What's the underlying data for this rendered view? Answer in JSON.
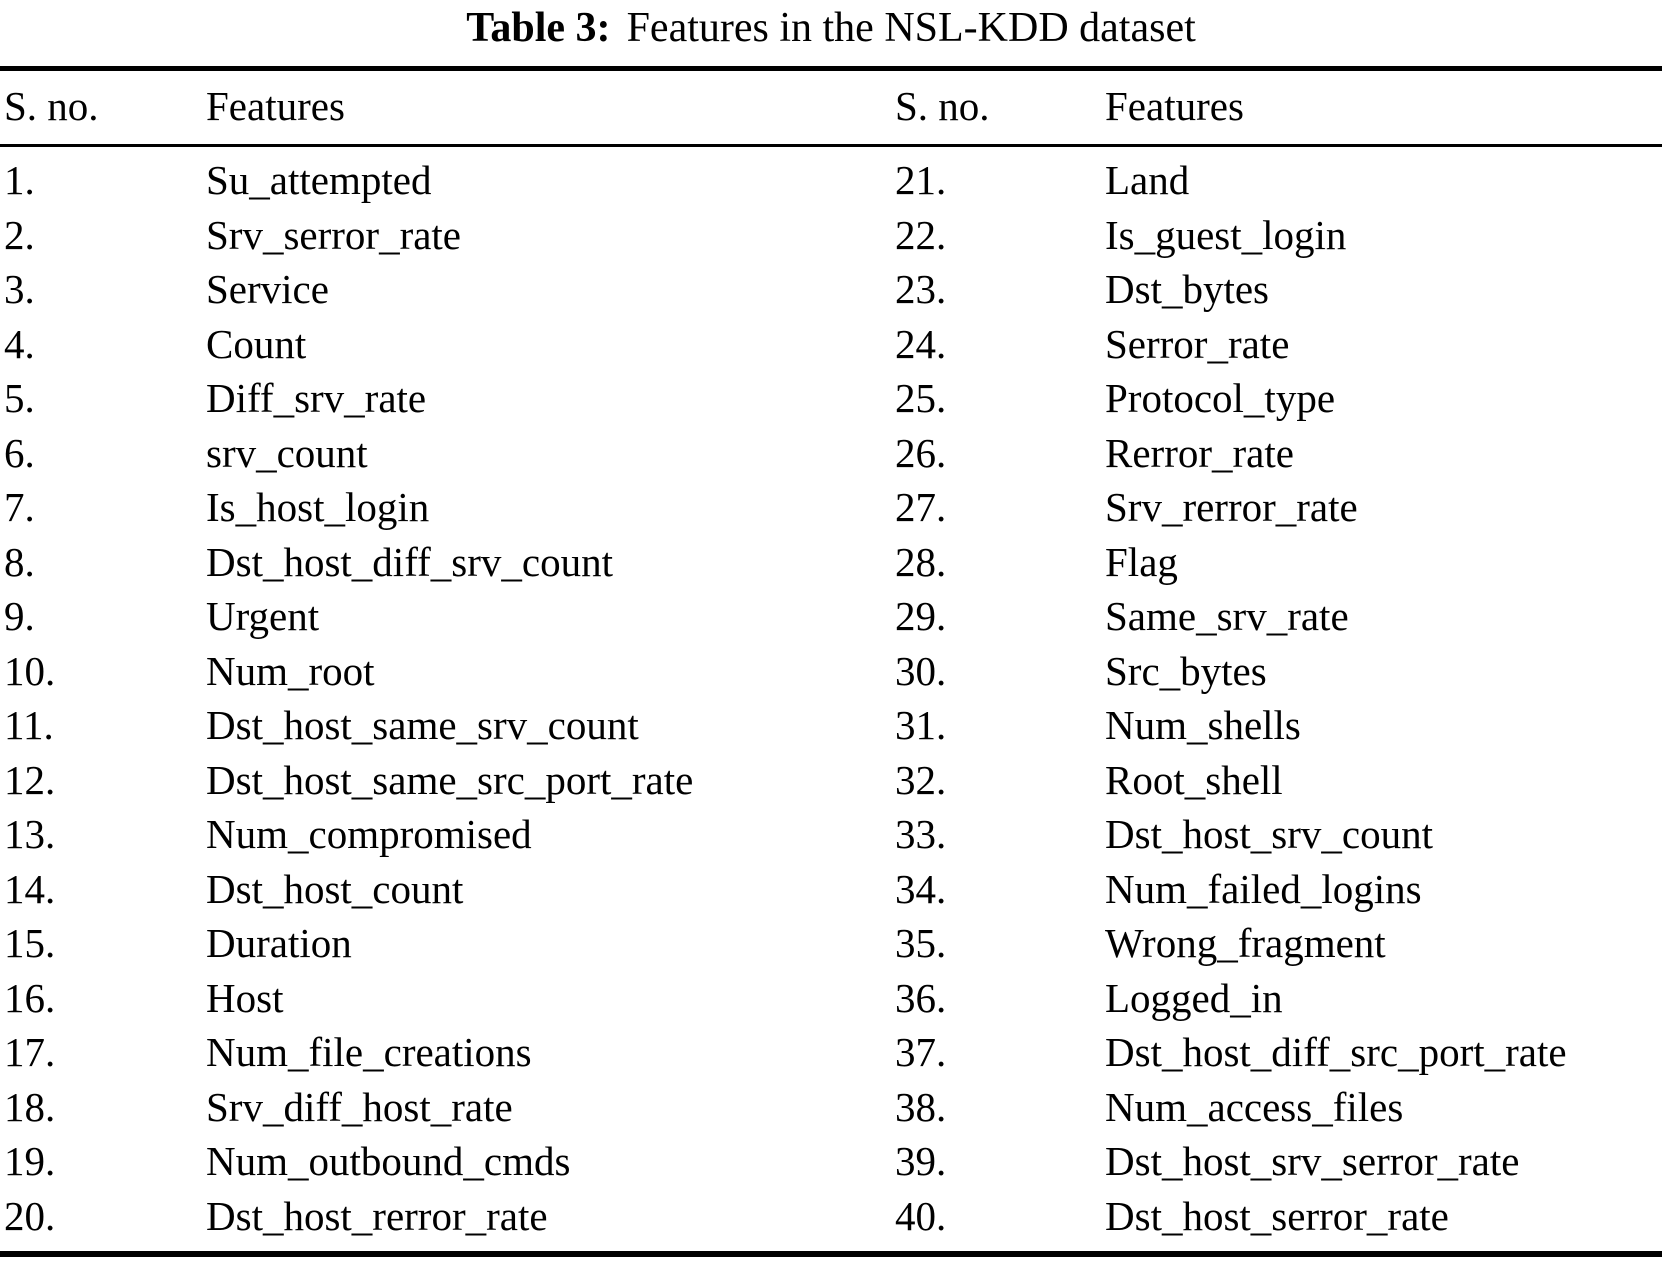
{
  "title": {
    "label": "Table 3:",
    "text": "Features in the NSL-KDD dataset"
  },
  "table": {
    "columns": [
      "S. no.",
      "Features",
      "S. no.",
      "Features"
    ],
    "rows": [
      [
        "1.",
        "Su_attempted",
        "21.",
        "Land"
      ],
      [
        "2.",
        "Srv_serror_rate",
        "22.",
        "Is_guest_login"
      ],
      [
        "3.",
        "Service",
        "23.",
        "Dst_bytes"
      ],
      [
        "4.",
        "Count",
        "24.",
        "Serror_rate"
      ],
      [
        "5.",
        "Diff_srv_rate",
        "25.",
        "Protocol_type"
      ],
      [
        "6.",
        "srv_count",
        "26.",
        "Rerror_rate"
      ],
      [
        "7.",
        "Is_host_login",
        "27.",
        "Srv_rerror_rate"
      ],
      [
        "8.",
        "Dst_host_diff_srv_count",
        "28.",
        "Flag"
      ],
      [
        "9.",
        "Urgent",
        "29.",
        "Same_srv_rate"
      ],
      [
        "10.",
        "Num_root",
        "30.",
        "Src_bytes"
      ],
      [
        "11.",
        "Dst_host_same_srv_count",
        "31.",
        "Num_shells"
      ],
      [
        "12.",
        "Dst_host_same_src_port_rate",
        "32.",
        "Root_shell"
      ],
      [
        "13.",
        "Num_compromised",
        "33.",
        "Dst_host_srv_count"
      ],
      [
        "14.",
        "Dst_host_count",
        "34.",
        "Num_failed_logins"
      ],
      [
        "15.",
        "Duration",
        "35.",
        "Wrong_fragment"
      ],
      [
        "16.",
        "Host",
        "36.",
        "Logged_in"
      ],
      [
        "17.",
        "Num_file_creations",
        "37.",
        "Dst_host_diff_src_port_rate"
      ],
      [
        "18.",
        "Srv_diff_host_rate",
        "38.",
        "Num_access_files"
      ],
      [
        "19.",
        "Num_outbound_cmds",
        "39.",
        "Dst_host_srv_serror_rate"
      ],
      [
        "20.",
        "Dst_host_rerror_rate",
        "40.",
        "Dst_host_serror_rate"
      ]
    ]
  }
}
